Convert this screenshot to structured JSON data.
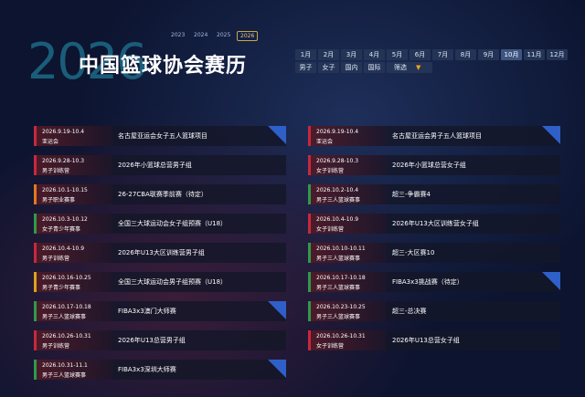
{
  "header": {
    "years": [
      "2023",
      "2024",
      "2025",
      "2026"
    ],
    "active_year": "2026",
    "watermark": "2026",
    "title": "中国篮球协会赛历",
    "months": [
      "1月",
      "2月",
      "3月",
      "4月",
      "5月",
      "6月",
      "7月",
      "8月",
      "9月",
      "10月",
      "11月",
      "12月"
    ],
    "active_month": "10月",
    "filters": [
      "男子",
      "女子",
      "国内",
      "国际"
    ],
    "filter_button": "筛选",
    "filter_arrow": "▼"
  },
  "columns": [
    [
      {
        "date": "2026.9.19-10.4",
        "category": "亚运会",
        "name": "名古屋亚运会女子五人篮球项目",
        "color": "#c8283c",
        "badge": true
      },
      {
        "date": "2026.9.28-10.3",
        "category": "男子训练营",
        "name": "2026年小篮球总营男子组",
        "color": "#c8283c",
        "badge": false
      },
      {
        "date": "2026.10.1-10.15",
        "category": "男子职业赛事",
        "name": "26-27CBA联赛季前赛（待定）",
        "color": "#e07a1f",
        "badge": false
      },
      {
        "date": "2026.10.3-10.12",
        "category": "女子青少年赛事",
        "name": "全国三大球运动会女子组预赛（U18）",
        "color": "#2f9a4a",
        "badge": false
      },
      {
        "date": "2026.10.4-10.9",
        "category": "男子训练营",
        "name": "2026年U13大区训练营男子组",
        "color": "#c8283c",
        "badge": false
      },
      {
        "date": "2026.10.16-10.25",
        "category": "男子青少年赛事",
        "name": "全国三大球运动会男子组预赛（U18）",
        "color": "#d9a21f",
        "badge": false
      },
      {
        "date": "2026.10.17-10.18",
        "category": "男子三人篮球赛事",
        "name": "FIBA3x3澳门大师赛",
        "color": "#2f9a4a",
        "badge": true
      },
      {
        "date": "2026.10.26-10.31",
        "category": "男子训练营",
        "name": "2026年U13总营男子组",
        "color": "#c8283c",
        "badge": false
      },
      {
        "date": "2026.10.31-11.1",
        "category": "男子三人篮球赛事",
        "name": "FIBA3x3深圳大师赛",
        "color": "#2f9a4a",
        "badge": true
      }
    ],
    [
      {
        "date": "2026.9.19-10.4",
        "category": "亚运会",
        "name": "名古屋亚运会男子五人篮球项目",
        "color": "#c8283c",
        "badge": true
      },
      {
        "date": "2026.9.28-10.3",
        "category": "女子训练营",
        "name": "2026年小篮球总营女子组",
        "color": "#c8283c",
        "badge": false
      },
      {
        "date": "2026.10.2-10.4",
        "category": "男子三人篮球赛事",
        "name": "超三-争霸赛4",
        "color": "#2f9a4a",
        "badge": false
      },
      {
        "date": "2026.10.4-10.9",
        "category": "女子训练营",
        "name": "2026年U13大区训练营女子组",
        "color": "#c8283c",
        "badge": false
      },
      {
        "date": "2026.10.10-10.11",
        "category": "男子三人篮球赛事",
        "name": "超三-大区赛10",
        "color": "#2f9a4a",
        "badge": false
      },
      {
        "date": "2026.10.17-10.18",
        "category": "男子三人篮球赛事",
        "name": "FIBA3x3挑战赛（待定）",
        "color": "#2f9a4a",
        "badge": true
      },
      {
        "date": "2026.10.23-10.25",
        "category": "男子三人篮球赛事",
        "name": "超三-总决赛",
        "color": "#2f9a4a",
        "badge": false
      },
      {
        "date": "2026.10.26-10.31",
        "category": "女子训练营",
        "name": "2026年U13总营女子组",
        "color": "#c8283c",
        "badge": false
      }
    ]
  ]
}
